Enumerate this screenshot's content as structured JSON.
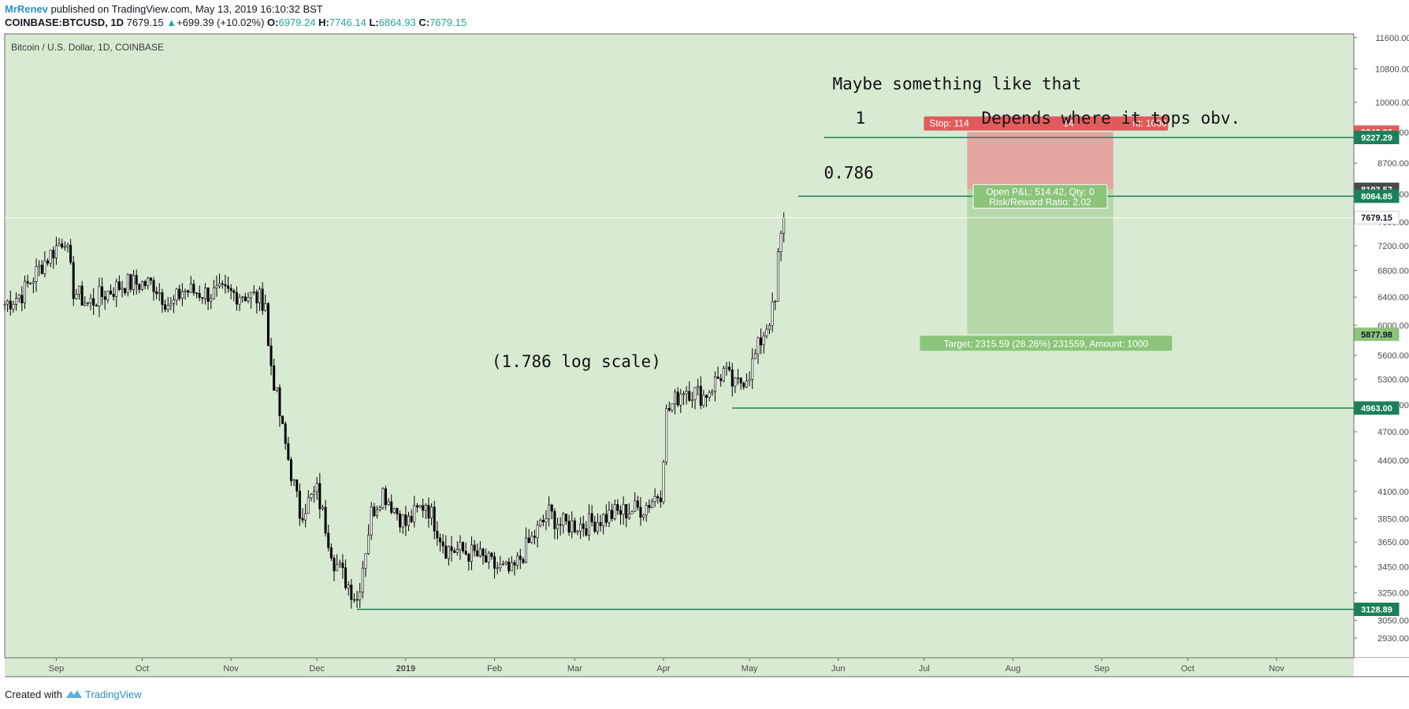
{
  "header": {
    "author": "MrRenev",
    "published": " published on TradingView.com, May 13, 2019 16:10:32 BST",
    "symbol": "COINBASE:BTCUSD, 1D",
    "last": "7679.15",
    "change_icon": "triangle-up-icon",
    "change": "+699.39 (+10.02%)",
    "o_label": "O:",
    "o": "6979.24",
    "h_label": "H:",
    "h": "7746.14",
    "l_label": "L:",
    "l": "6864.93",
    "c_label": "C:",
    "c": "7679.15"
  },
  "footer": {
    "created_with": "Created with",
    "logo_icon": "tradingview-logo-icon",
    "brand": "TradingView"
  },
  "colors": {
    "background": "#d9ead3",
    "candle": "#000000",
    "hline": "#1b8059",
    "stop_zone": "#e3a6a0",
    "target_zone": "#b7d8a8",
    "stop_label": "#e05c5c",
    "target_label": "#8bc57a",
    "price_badge_green": "#1b8059",
    "price_badge_red": "#e05c5c",
    "price_badge_dark": "#4a4a4a"
  },
  "chart_data": {
    "type": "candlestick",
    "title": "Bitcoin / U.S. Dollar, 1D, COINBASE",
    "y_scale": "log",
    "ylim": [
      2800,
      11700
    ],
    "xlim": [
      "2018-08-14",
      "2019-11-28"
    ],
    "x_ticks": [
      {
        "date": "2018-09-01",
        "label": "Sep"
      },
      {
        "date": "2018-10-01",
        "label": "Oct"
      },
      {
        "date": "2018-11-01",
        "label": "Nov"
      },
      {
        "date": "2018-12-01",
        "label": "Dec"
      },
      {
        "date": "2019-01-01",
        "label": "2019"
      },
      {
        "date": "2019-02-01",
        "label": "Feb"
      },
      {
        "date": "2019-03-01",
        "label": "Mar"
      },
      {
        "date": "2019-04-01",
        "label": "Apr"
      },
      {
        "date": "2019-05-01",
        "label": "May"
      },
      {
        "date": "2019-06-01",
        "label": "Jun"
      },
      {
        "date": "2019-07-01",
        "label": "Jul"
      },
      {
        "date": "2019-08-01",
        "label": "Aug"
      },
      {
        "date": "2019-09-01",
        "label": "Sep"
      },
      {
        "date": "2019-10-01",
        "label": "Oct"
      },
      {
        "date": "2019-11-01",
        "label": "Nov"
      }
    ],
    "y_ticks": [
      "11600.00",
      "10800.00",
      "10000.00",
      "9340.00",
      "8700.00",
      "8100.00",
      "7600.00",
      "7200.00",
      "6800.00",
      "6400.00",
      "6000.00",
      "5600.00",
      "5300.00",
      "5000.00",
      "4700.00",
      "4400.00",
      "4100.00",
      "3850.00",
      "3650.00",
      "3450.00",
      "3250.00",
      "3050.00",
      "2930.00"
    ],
    "close_series": [
      {
        "date": "2018-08-14",
        "close": 6300
      },
      {
        "date": "2018-08-20",
        "close": 6450
      },
      {
        "date": "2018-08-27",
        "close": 6900
      },
      {
        "date": "2018-09-04",
        "close": 7350
      },
      {
        "date": "2018-09-07",
        "close": 6500
      },
      {
        "date": "2018-09-12",
        "close": 6300
      },
      {
        "date": "2018-09-20",
        "close": 6500
      },
      {
        "date": "2018-09-25",
        "close": 6600
      },
      {
        "date": "2018-10-05",
        "close": 6600
      },
      {
        "date": "2018-10-11",
        "close": 6250
      },
      {
        "date": "2018-10-15",
        "close": 6500
      },
      {
        "date": "2018-10-25",
        "close": 6450
      },
      {
        "date": "2018-11-05",
        "close": 6450
      },
      {
        "date": "2018-11-13",
        "close": 6350
      },
      {
        "date": "2018-11-14",
        "close": 5700
      },
      {
        "date": "2018-11-19",
        "close": 4700
      },
      {
        "date": "2018-11-25",
        "close": 3900
      },
      {
        "date": "2018-12-01",
        "close": 4100
      },
      {
        "date": "2018-12-07",
        "close": 3500
      },
      {
        "date": "2018-12-15",
        "close": 3200
      },
      {
        "date": "2018-12-20",
        "close": 3900
      },
      {
        "date": "2018-12-24",
        "close": 4100
      },
      {
        "date": "2019-01-01",
        "close": 3800
      },
      {
        "date": "2019-01-08",
        "close": 4000
      },
      {
        "date": "2019-01-15",
        "close": 3600
      },
      {
        "date": "2019-01-25",
        "close": 3550
      },
      {
        "date": "2019-02-01",
        "close": 3450
      },
      {
        "date": "2019-02-07",
        "close": 3400
      },
      {
        "date": "2019-02-12",
        "close": 3600
      },
      {
        "date": "2019-02-20",
        "close": 3900
      },
      {
        "date": "2019-02-24",
        "close": 3800
      },
      {
        "date": "2019-03-05",
        "close": 3800
      },
      {
        "date": "2019-03-15",
        "close": 3900
      },
      {
        "date": "2019-03-25",
        "close": 3950
      },
      {
        "date": "2019-03-31",
        "close": 4100
      },
      {
        "date": "2019-04-02",
        "close": 4900
      },
      {
        "date": "2019-04-08",
        "close": 5200
      },
      {
        "date": "2019-04-15",
        "close": 5100
      },
      {
        "date": "2019-04-22",
        "close": 5400
      },
      {
        "date": "2019-04-26",
        "close": 5200
      },
      {
        "date": "2019-05-01",
        "close": 5400
      },
      {
        "date": "2019-05-05",
        "close": 5800
      },
      {
        "date": "2019-05-08",
        "close": 6100
      },
      {
        "date": "2019-05-10",
        "close": 6300
      },
      {
        "date": "2019-05-11",
        "close": 7000
      },
      {
        "date": "2019-05-13",
        "close": 7679.15
      }
    ],
    "horizontal_lines": [
      {
        "price": 9227.29,
        "label": "9227.29",
        "from": "2019-05-27",
        "to": "2019-11-28"
      },
      {
        "price": 8064.85,
        "label": "8064.85",
        "from": "2019-05-18",
        "to": "2019-11-28"
      },
      {
        "price": 4963.0,
        "label": "4963.00",
        "from": "2019-04-25",
        "to": "2019-11-28"
      },
      {
        "price": 3128.89,
        "label": "3128.89",
        "from": "2018-12-15",
        "to": "2019-11-28"
      }
    ],
    "position_tool": {
      "from": "2019-07-16",
      "to": "2019-09-05",
      "stop": 9340.96,
      "entry": 8193.57,
      "target": 5877.98,
      "stop_label": "Stop: 114",
      "stop_label_tail": "14",
      "stop_label_end": "nt: 1000",
      "pnl_label": "Open P&L: 514.42, Qty: 0",
      "rr_label": "Risk/Reward Ratio: 2.02",
      "target_label": "Target: 2315.59 (28.26%) 231559, Amount: 1000"
    },
    "price_badges": [
      {
        "price": 9340.96,
        "label": "9340.96",
        "kind": "red"
      },
      {
        "price": 9227.29,
        "label": "9227.29",
        "kind": "green"
      },
      {
        "price": 8193.57,
        "label": "8193.57",
        "kind": "dark"
      },
      {
        "price": 8064.85,
        "label": "8064.85",
        "kind": "green"
      },
      {
        "price": 7679.15,
        "label": "7679.15",
        "kind": "white"
      },
      {
        "price": 5877.98,
        "label": "5877.98",
        "kind": "lightgreen"
      },
      {
        "price": 4963.0,
        "label": "4963.00",
        "kind": "green"
      },
      {
        "price": 3128.89,
        "label": "3128.89",
        "kind": "green"
      }
    ],
    "annotations": [
      {
        "text": "Maybe something like that",
        "date": "2019-05-30",
        "price": 10300
      },
      {
        "text": "1",
        "date": "2019-06-07",
        "price": 9520
      },
      {
        "text": "Depends where it tops obv.",
        "date": "2019-07-21",
        "price": 9520
      },
      {
        "text": "0.786",
        "date": "2019-05-27",
        "price": 8400
      },
      {
        "text": "(1.786 log scale)",
        "date": "2019-01-31",
        "price": 5450
      }
    ]
  }
}
